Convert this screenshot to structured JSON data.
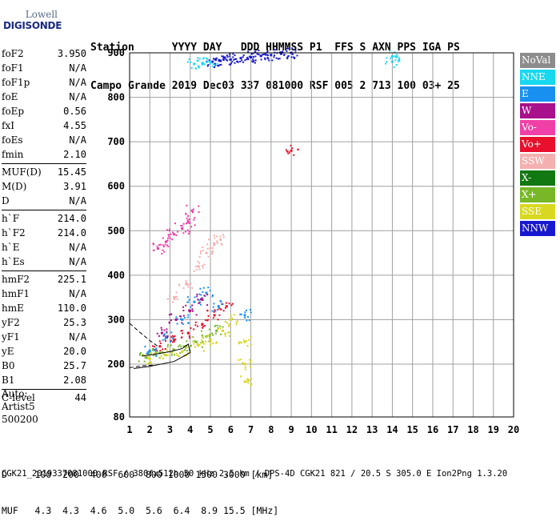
{
  "logo": {
    "brand": "Lowell",
    "sub": "DIGISONDE"
  },
  "header": {
    "line1": "Station      YYYY DAY   DDD HHMMSS P1  FFS S AXN PPS IGA PS",
    "line2": "Campo Grande 2019 Dec03 337 081000 RSF 005 2 713 100 03+ 25"
  },
  "params": [
    {
      "name": "foF2",
      "value": "3.950"
    },
    {
      "name": "foF1",
      "value": "N/A"
    },
    {
      "name": "foF1p",
      "value": "N/A"
    },
    {
      "name": "foE",
      "value": "N/A"
    },
    {
      "name": "foEp",
      "value": "0.56"
    },
    {
      "name": "fxI",
      "value": "4.55"
    },
    {
      "name": "foEs",
      "value": "N/A"
    },
    {
      "name": "fmin",
      "value": "2.10"
    },
    {
      "name": "MUF(D)",
      "value": "15.45"
    },
    {
      "name": "M(D)",
      "value": "3.91"
    },
    {
      "name": "D",
      "value": "N/A"
    },
    {
      "name": "h`F",
      "value": "214.0"
    },
    {
      "name": "h`F2",
      "value": "214.0"
    },
    {
      "name": "h`E",
      "value": "N/A"
    },
    {
      "name": "h`Es",
      "value": "N/A"
    },
    {
      "name": "hmF2",
      "value": "225.1"
    },
    {
      "name": "hmF1",
      "value": "N/A"
    },
    {
      "name": "hmE",
      "value": "110.0"
    },
    {
      "name": "yF2",
      "value": "25.3"
    },
    {
      "name": "yF1",
      "value": "N/A"
    },
    {
      "name": "yE",
      "value": "20.0"
    },
    {
      "name": "B0",
      "value": "25.7"
    },
    {
      "name": "B1",
      "value": "2.08"
    },
    {
      "name": "C-level",
      "value": "44"
    }
  ],
  "auto": {
    "line1": "Auto:",
    "line2": "Artist5",
    "line3": "500200"
  },
  "legend": [
    {
      "label": "NoVal",
      "color": "#8c8c8c"
    },
    {
      "label": "NNE",
      "color": "#18d8f0"
    },
    {
      "label": "E",
      "color": "#1890f0"
    },
    {
      "label": "W",
      "color": "#a8108c"
    },
    {
      "label": "Vo-",
      "color": "#f040a8"
    },
    {
      "label": "Vo+",
      "color": "#e8102c"
    },
    {
      "label": "SSW",
      "color": "#f4b0b0"
    },
    {
      "label": "X-",
      "color": "#127812"
    },
    {
      "label": "X+",
      "color": "#78b828"
    },
    {
      "label": "SSE",
      "color": "#d8d820"
    },
    {
      "label": "NNW",
      "color": "#1818d0"
    }
  ],
  "bottom": {
    "line1": "D     100  200  400  600  800 1000 1500 3000 [km]",
    "line2": "MUF   4.3  4.3  4.6  5.0  5.6  6.4  8.9 15.5 [MHz]"
  },
  "footer": "CGK21_2019337081000.RSF / 380fx512h 50 kHz 2.5 km / DPS-4D CGK21 821 / 20.5 S 305.0 E Ion2Png 1.3.20",
  "chart_data": {
    "type": "scatter",
    "title": "",
    "xlabel": "",
    "ylabel": "",
    "xlim": [
      1,
      20
    ],
    "ylim": [
      80,
      900
    ],
    "x_ticks": [
      1,
      2,
      3,
      4,
      5,
      6,
      7,
      8,
      9,
      10,
      11,
      12,
      13,
      14,
      15,
      16,
      17,
      18,
      19,
      20
    ],
    "y_ticks": [
      80,
      200,
      300,
      400,
      500,
      600,
      700,
      800,
      900
    ],
    "grid": true,
    "legend_position": "right",
    "clusters": [
      {
        "name": "NNW",
        "color": "#1818d0",
        "points": [
          [
            5.1,
            880
          ],
          [
            5.5,
            882
          ],
          [
            6.0,
            885
          ],
          [
            6.5,
            888
          ],
          [
            7.0,
            890
          ],
          [
            7.5,
            893
          ],
          [
            8.0,
            895
          ],
          [
            8.5,
            898
          ],
          [
            9.0,
            900
          ]
        ]
      },
      {
        "name": "NNE",
        "color": "#18d8f0",
        "points": [
          [
            4.2,
            875
          ],
          [
            4.6,
            877
          ],
          [
            5.0,
            880
          ],
          [
            14.0,
            892
          ],
          [
            14.0,
            880
          ]
        ]
      },
      {
        "name": "X+",
        "color": "#78b828",
        "points": [
          [
            1.8,
            215
          ],
          [
            2.5,
            225
          ],
          [
            3.2,
            232
          ],
          [
            3.8,
            240
          ],
          [
            4.3,
            250
          ],
          [
            4.8,
            262
          ],
          [
            5.3,
            275
          ]
        ]
      },
      {
        "name": "SSE",
        "color": "#d8d820",
        "points": [
          [
            2.0,
            212
          ],
          [
            2.8,
            220
          ],
          [
            3.6,
            228
          ],
          [
            4.4,
            242
          ],
          [
            5.0,
            255
          ],
          [
            5.6,
            275
          ],
          [
            6.0,
            300
          ],
          [
            6.7,
            250
          ],
          [
            6.7,
            200
          ],
          [
            6.7,
            160
          ]
        ]
      },
      {
        "name": "Vo+",
        "color": "#e8102c",
        "points": [
          [
            2.5,
            240
          ],
          [
            3.2,
            255
          ],
          [
            3.9,
            270
          ],
          [
            4.6,
            290
          ],
          [
            5.2,
            310
          ],
          [
            5.8,
            330
          ],
          [
            9.0,
            680
          ]
        ]
      },
      {
        "name": "Vo-",
        "color": "#f040a8",
        "points": [
          [
            2.4,
            460
          ],
          [
            2.8,
            475
          ],
          [
            3.2,
            492
          ],
          [
            3.6,
            505
          ],
          [
            3.9,
            520
          ],
          [
            4.1,
            545
          ]
        ]
      },
      {
        "name": "SSW",
        "color": "#f4b0b0",
        "points": [
          [
            3.2,
            350
          ],
          [
            3.8,
            380
          ],
          [
            4.4,
            420
          ],
          [
            4.8,
            450
          ],
          [
            5.2,
            470
          ],
          [
            5.5,
            480
          ]
        ]
      },
      {
        "name": "E",
        "color": "#1890f0",
        "points": [
          [
            2.0,
            230
          ],
          [
            2.8,
            260
          ],
          [
            3.6,
            300
          ],
          [
            4.2,
            340
          ],
          [
            4.8,
            360
          ],
          [
            5.4,
            330
          ],
          [
            6.7,
            310
          ]
        ]
      },
      {
        "name": "W",
        "color": "#a8108c",
        "points": [
          [
            2.6,
            270
          ],
          [
            3.3,
            300
          ],
          [
            4.0,
            320
          ],
          [
            4.6,
            345
          ]
        ]
      }
    ],
    "profile_curves": [
      {
        "name": "profile-solid",
        "style": "solid",
        "points": [
          [
            1.6,
            218
          ],
          [
            2.2,
            222
          ],
          [
            3.0,
            228
          ],
          [
            3.6,
            235
          ],
          [
            3.9,
            245
          ],
          [
            4.0,
            226
          ],
          [
            3.2,
            206
          ],
          [
            2.0,
            195
          ],
          [
            1.2,
            190
          ]
        ]
      },
      {
        "name": "profile-dashed-upper",
        "style": "dashed",
        "points": [
          [
            1.0,
            292
          ],
          [
            1.5,
            272
          ],
          [
            2.0,
            253
          ],
          [
            2.4,
            240
          ]
        ]
      },
      {
        "name": "profile-dashed-lower",
        "style": "dashed",
        "points": [
          [
            1.0,
            192
          ],
          [
            1.6,
            196
          ],
          [
            2.2,
            198
          ]
        ]
      }
    ]
  }
}
